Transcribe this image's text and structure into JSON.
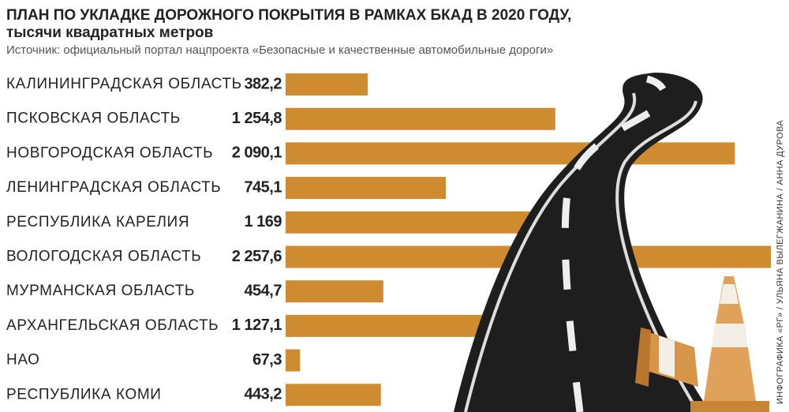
{
  "chart_data": {
    "type": "bar",
    "orientation": "horizontal",
    "title": "ПЛАН ПО УКЛАДКЕ ДОРОЖНОГО ПОКРЫТИЯ В РАМКАХ БКАД В 2020 ГОДУ,",
    "subtitle": "тысячи квадратных метров",
    "source": "Источник: официальный портал нацпроекта «Безопасные и качественные автомобильные дороги»",
    "credit": "ИНФОГРАФИКА «РГ» / УЛЬЯНА ВЫЛЕГЖАНИНА / АННА ДУРОВА",
    "categories": [
      "КАЛИНИНГРАДСКАЯ ОБЛАСТЬ",
      "ПСКОВСКАЯ ОБЛАСТЬ",
      "НОВГОРОДСКАЯ ОБЛАСТЬ",
      "ЛЕНИНГРАДСКАЯ ОБЛАСТЬ",
      "РЕСПУБЛИКА КАРЕЛИЯ",
      "ВОЛОГОДСКАЯ ОБЛАСТЬ",
      "МУРМАНСКАЯ ОБЛАСТЬ",
      "АРХАНГЕЛЬСКАЯ ОБЛАСТЬ",
      "НАО",
      "РЕСПУБЛИКА КОМИ"
    ],
    "values": [
      382.2,
      1254.8,
      2090.1,
      745.1,
      1169,
      2257.6,
      454.7,
      1127.1,
      67.3,
      443.2
    ],
    "value_labels": [
      "382,2",
      "1 254,8",
      "2 090,1",
      "745,1",
      "1 169",
      "2 257,6",
      "454,7",
      "1 127,1",
      "67,3",
      "443,2"
    ],
    "color": "#cf8b2f"
  }
}
